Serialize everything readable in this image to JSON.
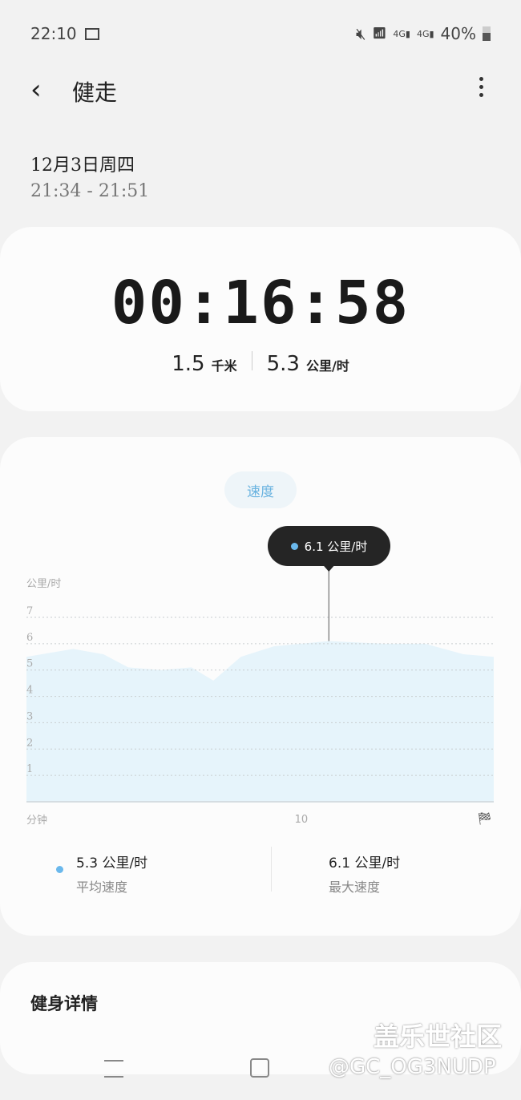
{
  "status_bar": {
    "time": "22:10",
    "battery": "40%",
    "icons": [
      "image-icon",
      "mute-icon",
      "wifi-icon",
      "4g-signal-icon",
      "4g-signal-icon",
      "battery-icon"
    ]
  },
  "header": {
    "title": "健走",
    "back": "back-icon",
    "menu": "more-vert-icon"
  },
  "session": {
    "date": "12月3日周四",
    "time_range": "21:34 - 21:51"
  },
  "summary": {
    "duration": "00:16:58",
    "distance": "1.5",
    "distance_unit": "千米",
    "speed": "5.3",
    "speed_unit": "公里/时"
  },
  "speed_card": {
    "tab": "速度",
    "tooltip": "6.1 公里/时",
    "avg_value": "5.3 公里/时",
    "avg_label": "平均速度",
    "max_value": "6.1 公里/时",
    "max_label": "最大速度"
  },
  "chart_data": {
    "type": "area",
    "ylabel": "公里/时",
    "xlabel": "分钟",
    "ylim": [
      0,
      7
    ],
    "yticks": [
      1,
      2,
      3,
      4,
      5,
      6,
      7
    ],
    "xlim": [
      0,
      17
    ],
    "xticks": [
      10
    ],
    "grid": true,
    "color": "#e6f4fb",
    "x": [
      0,
      1.7,
      2.8,
      3.7,
      4.9,
      6.0,
      6.8,
      7.8,
      9,
      11,
      13,
      14.5,
      15.9,
      17
    ],
    "y": [
      5.5,
      5.8,
      5.6,
      5.1,
      5.0,
      5.1,
      4.6,
      5.5,
      5.9,
      6.1,
      6.0,
      6.0,
      5.6,
      5.5
    ],
    "highlight": {
      "x": 11,
      "y": 6.1
    }
  },
  "details": {
    "title": "健身详情"
  },
  "watermark": {
    "line1": "盖乐世社区",
    "line2": "@GC_OG3NUDP"
  }
}
